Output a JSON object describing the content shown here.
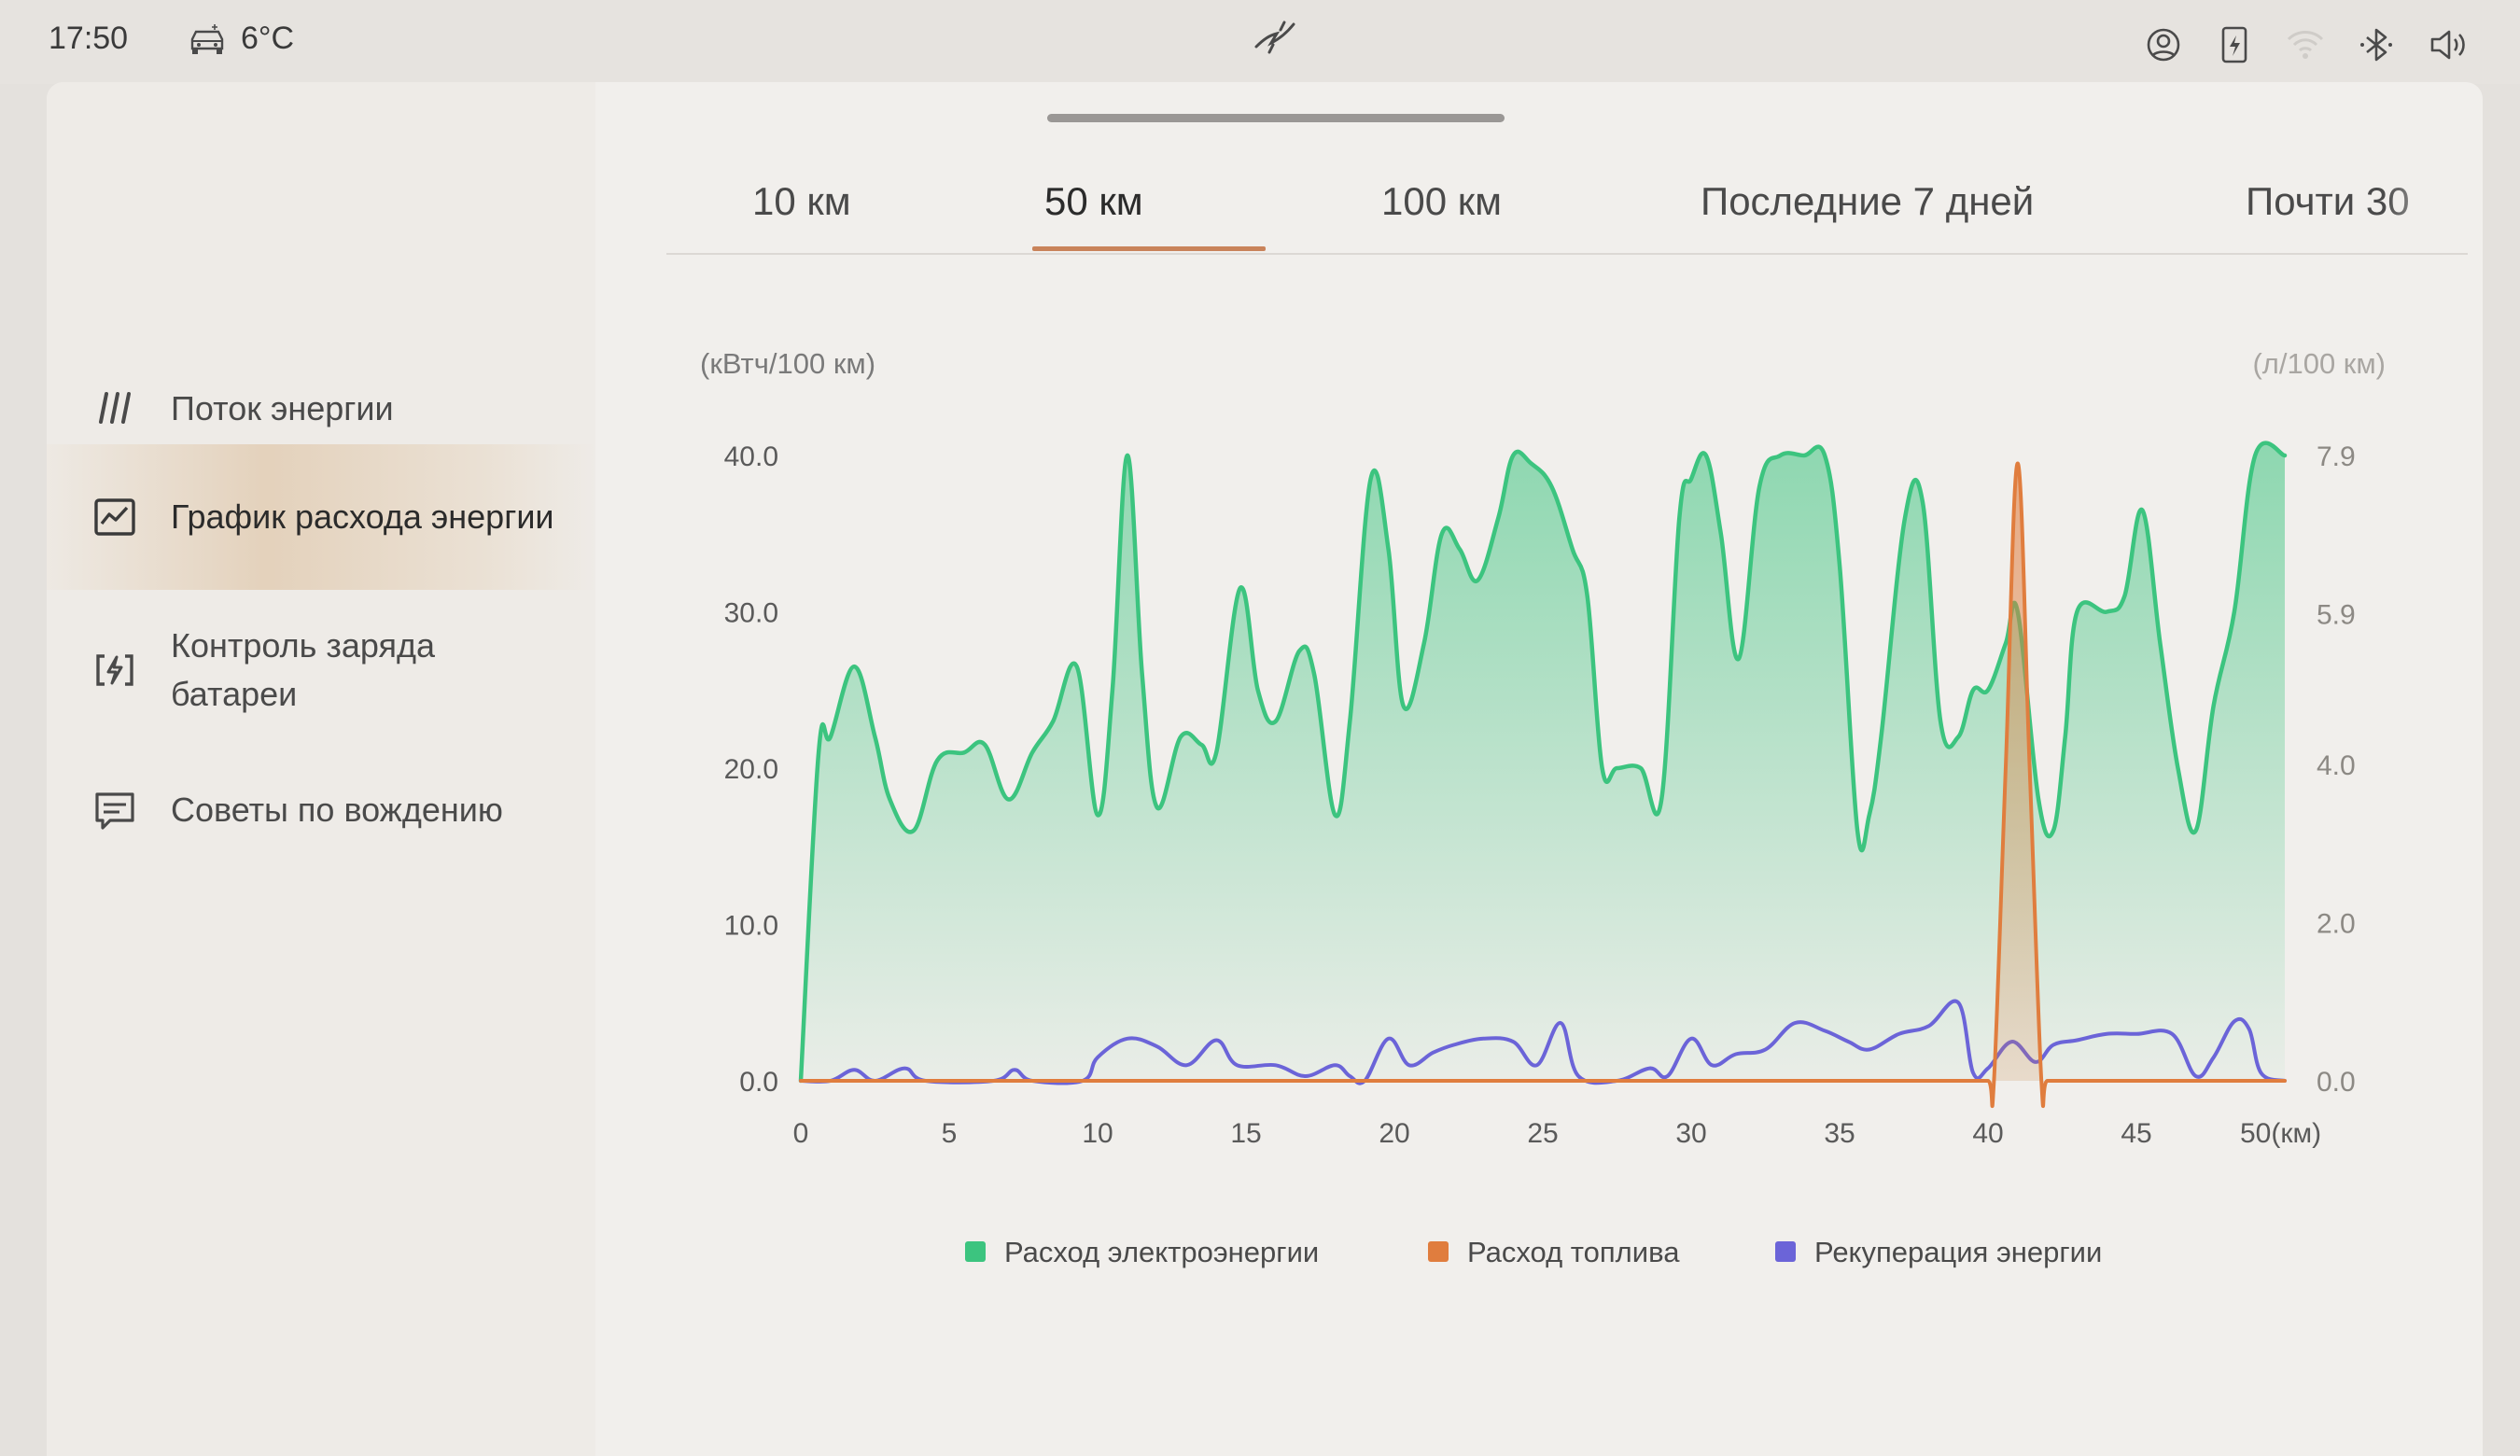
{
  "status_bar": {
    "time": "17:50",
    "temperature": "6°C",
    "icons": [
      "car-climate-icon",
      "brand-logo-icon",
      "user-profile-icon",
      "phone-charge-icon",
      "wifi-icon",
      "bluetooth-icon",
      "volume-icon"
    ]
  },
  "sidebar": {
    "items": [
      {
        "label": "Поток энергии",
        "icon": "energy-flow-icon",
        "active": false
      },
      {
        "label": "График расхода энергии",
        "icon": "chart-icon",
        "active": true
      },
      {
        "label": "Контроль заряда батареи",
        "icon": "battery-charge-icon",
        "active": false
      },
      {
        "label": "Советы по вождению",
        "icon": "message-tips-icon",
        "active": false
      }
    ]
  },
  "tabs": [
    {
      "label": "10 км",
      "active": false
    },
    {
      "label": "50 км",
      "active": true
    },
    {
      "label": "100 км",
      "active": false
    },
    {
      "label": "Последние 7 дней",
      "active": false
    },
    {
      "label": "Почти 30",
      "active": false
    }
  ],
  "colors": {
    "electric": "#3cc47f",
    "fuel": "#e07d3e",
    "regen": "#6b64d8",
    "active_tab_underline": "#c9835a"
  },
  "chart_data": {
    "type": "area",
    "ylabel_left": "(кВтч/100 км)",
    "ylabel_right": "(л/100 км)",
    "x_ticks": [
      "0",
      "5",
      "10",
      "15",
      "20",
      "25",
      "30",
      "35",
      "40",
      "45",
      "50(км)"
    ],
    "xlim": [
      0,
      50
    ],
    "y_left_ticks": [
      "0.0",
      "10.0",
      "20.0",
      "30.0",
      "40.0"
    ],
    "ylim_left": [
      0,
      40
    ],
    "y_right_ticks": [
      "0.0",
      "2.0",
      "4.0",
      "5.9",
      "7.9"
    ],
    "ylim_right": [
      0,
      7.9
    ],
    "grid": false,
    "legend_position": "bottom-center",
    "series": [
      {
        "name": "Расход электроэнергии",
        "axis": "left",
        "color": "#3cc47f",
        "fill": true,
        "points": [
          [
            0,
            0
          ],
          [
            0.6,
            21
          ],
          [
            1,
            22
          ],
          [
            1.8,
            26.5
          ],
          [
            2.5,
            22
          ],
          [
            3,
            18
          ],
          [
            3.8,
            16
          ],
          [
            4.6,
            20.5
          ],
          [
            5.5,
            21
          ],
          [
            6.2,
            21.5
          ],
          [
            7,
            18
          ],
          [
            7.8,
            21
          ],
          [
            8.5,
            23
          ],
          [
            9.3,
            26.5
          ],
          [
            10,
            17
          ],
          [
            10.5,
            25
          ],
          [
            11,
            40
          ],
          [
            11.5,
            26
          ],
          [
            12,
            17.5
          ],
          [
            12.8,
            22
          ],
          [
            13.5,
            21.5
          ],
          [
            14,
            21
          ],
          [
            14.8,
            31.5
          ],
          [
            15.4,
            25
          ],
          [
            16,
            23
          ],
          [
            16.8,
            27.5
          ],
          [
            17.3,
            26
          ],
          [
            18,
            17
          ],
          [
            18.5,
            23
          ],
          [
            19.2,
            38.5
          ],
          [
            19.8,
            34
          ],
          [
            20.3,
            24
          ],
          [
            21,
            28
          ],
          [
            21.6,
            35
          ],
          [
            22.2,
            34
          ],
          [
            22.8,
            32
          ],
          [
            23.5,
            36
          ],
          [
            24,
            40
          ],
          [
            24.6,
            39.5
          ],
          [
            25.3,
            38
          ],
          [
            26,
            34
          ],
          [
            26.5,
            31
          ],
          [
            27,
            20
          ],
          [
            27.5,
            20
          ],
          [
            28.3,
            20
          ],
          [
            29,
            18
          ],
          [
            29.6,
            36
          ],
          [
            30,
            38.5
          ],
          [
            30.5,
            40
          ],
          [
            31,
            35
          ],
          [
            31.6,
            27
          ],
          [
            32.3,
            38
          ],
          [
            33,
            40
          ],
          [
            33.8,
            40
          ],
          [
            34.5,
            40
          ],
          [
            35,
            33
          ],
          [
            35.6,
            16
          ],
          [
            36,
            17
          ],
          [
            36.4,
            22
          ],
          [
            37.2,
            36
          ],
          [
            37.8,
            37
          ],
          [
            38.4,
            23
          ],
          [
            39,
            22
          ],
          [
            39.5,
            25
          ],
          [
            40,
            25
          ],
          [
            40.6,
            28
          ],
          [
            41,
            30
          ],
          [
            41.7,
            18
          ],
          [
            42.2,
            16
          ],
          [
            42.6,
            22
          ],
          [
            43,
            30
          ],
          [
            44,
            30
          ],
          [
            44.6,
            31
          ],
          [
            45.2,
            36.5
          ],
          [
            45.8,
            28
          ],
          [
            46.4,
            20
          ],
          [
            47,
            16
          ],
          [
            47.6,
            24
          ],
          [
            48.3,
            30
          ],
          [
            49,
            40
          ],
          [
            50,
            40
          ]
        ]
      },
      {
        "name": "Расход топлива",
        "axis": "right",
        "color": "#e07d3e",
        "fill": true,
        "points": [
          [
            0,
            0
          ],
          [
            40,
            0
          ],
          [
            40.2,
            0
          ],
          [
            40.6,
            4
          ],
          [
            41,
            7.8
          ],
          [
            41.4,
            4
          ],
          [
            41.8,
            0
          ],
          [
            42,
            0
          ],
          [
            50,
            0
          ]
        ]
      },
      {
        "name": "Рекуперация энергии",
        "axis": "left",
        "color": "#6b64d8",
        "fill": false,
        "points": [
          [
            0,
            0
          ],
          [
            1,
            0
          ],
          [
            1.8,
            0.7
          ],
          [
            2.5,
            0
          ],
          [
            3.5,
            0.8
          ],
          [
            4.2,
            0
          ],
          [
            6.5,
            0
          ],
          [
            7.2,
            0.7
          ],
          [
            7.8,
            0
          ],
          [
            9.5,
            0
          ],
          [
            10,
            1.5
          ],
          [
            11,
            2.7
          ],
          [
            12,
            2.2
          ],
          [
            13,
            1
          ],
          [
            14,
            2.6
          ],
          [
            14.7,
            1
          ],
          [
            16,
            1
          ],
          [
            17,
            0.3
          ],
          [
            18,
            1
          ],
          [
            18.5,
            0.3
          ],
          [
            19,
            0
          ],
          [
            19.8,
            2.7
          ],
          [
            20.5,
            1
          ],
          [
            21.3,
            1.8
          ],
          [
            22,
            2.3
          ],
          [
            23,
            2.7
          ],
          [
            24,
            2.5
          ],
          [
            24.8,
            1
          ],
          [
            25.6,
            3.7
          ],
          [
            26.2,
            0.3
          ],
          [
            27.5,
            0
          ],
          [
            28.6,
            0.8
          ],
          [
            29.2,
            0.3
          ],
          [
            30,
            2.7
          ],
          [
            30.7,
            1
          ],
          [
            31.5,
            1.7
          ],
          [
            32.5,
            2
          ],
          [
            33.5,
            3.7
          ],
          [
            34.5,
            3.2
          ],
          [
            35.3,
            2.5
          ],
          [
            36,
            2
          ],
          [
            37,
            3
          ],
          [
            38,
            3.5
          ],
          [
            39,
            5
          ],
          [
            39.5,
            0.5
          ],
          [
            40,
            0.8
          ],
          [
            40.8,
            2.5
          ],
          [
            41.6,
            1.2
          ],
          [
            42.2,
            2.3
          ],
          [
            43,
            2.6
          ],
          [
            44,
            3
          ],
          [
            45,
            3
          ],
          [
            46.2,
            3
          ],
          [
            47,
            0.3
          ],
          [
            47.6,
            1.5
          ],
          [
            48.3,
            3.8
          ],
          [
            48.8,
            3.3
          ],
          [
            49.2,
            0.5
          ],
          [
            50,
            0
          ]
        ]
      }
    ]
  }
}
